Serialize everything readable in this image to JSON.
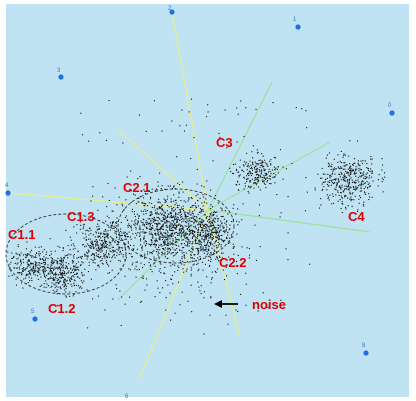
{
  "colors": {
    "background": "#bfe3f2",
    "point": "#111111",
    "anchor": "#1f6fe5",
    "anchor_label": "#3a6fd8",
    "label": "#e00000",
    "spoke_green": "#9be39a",
    "spoke_yellow": "#e9ee8a",
    "ellipse": "#333333"
  },
  "anchors": [
    {
      "id": "anchor-0",
      "label": "0"
    },
    {
      "id": "anchor-1",
      "label": "1"
    },
    {
      "id": "anchor-2",
      "label": "2"
    },
    {
      "id": "anchor-3",
      "label": "3"
    },
    {
      "id": "anchor-4",
      "label": "4"
    },
    {
      "id": "anchor-5",
      "label": "5"
    },
    {
      "id": "anchor-6",
      "label": "6"
    },
    {
      "id": "anchor-8",
      "label": "8"
    }
  ],
  "clusters": [
    {
      "id": "c1-1",
      "label": "C1.1"
    },
    {
      "id": "c1-2",
      "label": "C1.2"
    },
    {
      "id": "c1-3",
      "label": "C1.3"
    },
    {
      "id": "c2-1",
      "label": "C2.1"
    },
    {
      "id": "c2-2",
      "label": "C2.2"
    },
    {
      "id": "c3",
      "label": "C3"
    },
    {
      "id": "c4",
      "label": "C4"
    }
  ],
  "noise": {
    "label": "noise",
    "arrow_icon": "left-arrow-icon"
  }
}
